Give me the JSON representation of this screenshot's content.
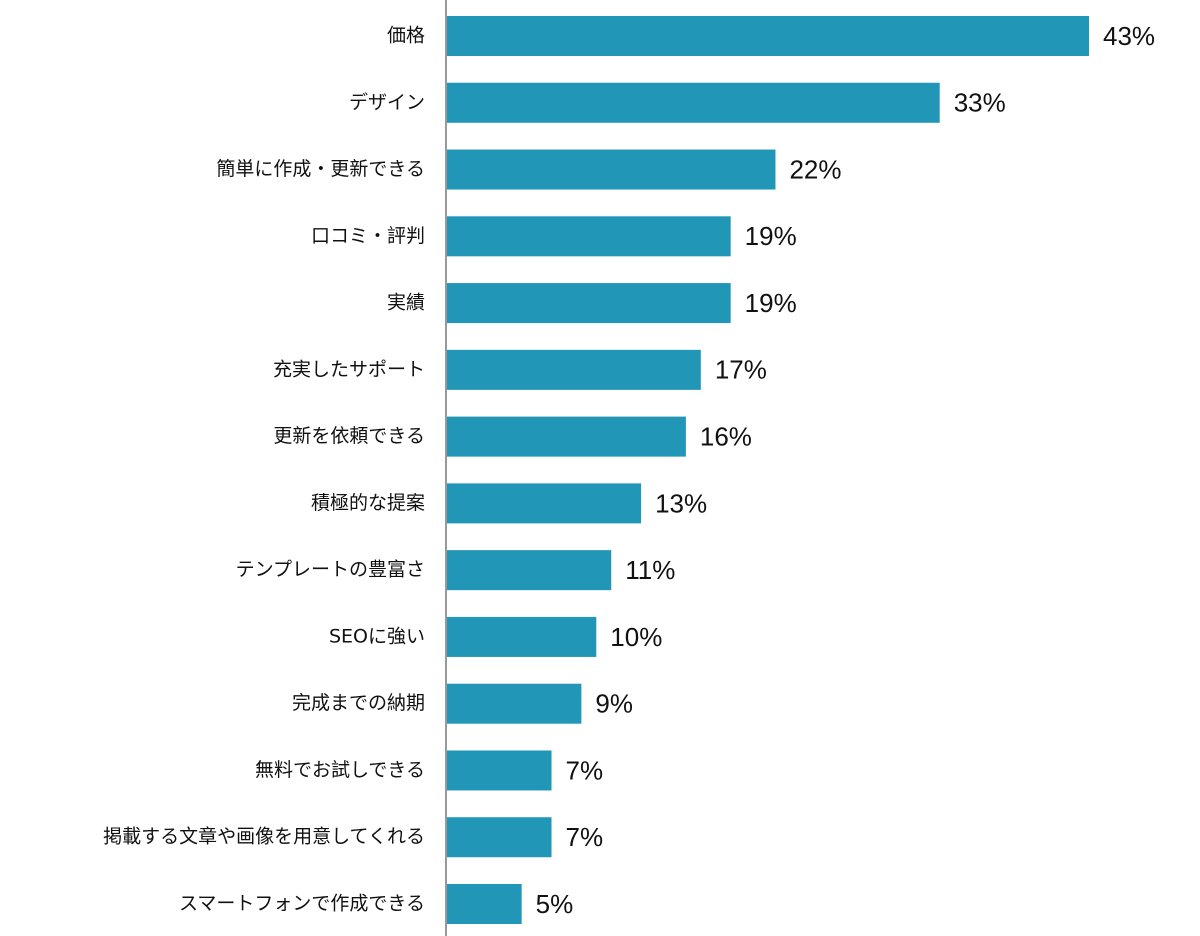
{
  "chart_data": {
    "type": "hbar",
    "categories": [
      "価格",
      "デザイン",
      "簡単に作成・更新できる",
      "口コミ・評判",
      "実績",
      "充実したサポート",
      "更新を依頼できる",
      "積極的な提案",
      "テンプレートの豊富さ",
      "SEOに強い",
      "完成までの納期",
      "無料でお試しできる",
      "掲載する文章や画像を用意してくれる",
      "スマートフォンで作成できる"
    ],
    "values": [
      43,
      33,
      22,
      19,
      19,
      17,
      16,
      13,
      11,
      10,
      9,
      7,
      7,
      5
    ],
    "value_labels": [
      "43%",
      "33%",
      "22%",
      "19%",
      "19%",
      "17%",
      "16%",
      "13%",
      "11%",
      "10%",
      "9%",
      "7%",
      "7%",
      "5%"
    ],
    "color": "#2196b6"
  }
}
